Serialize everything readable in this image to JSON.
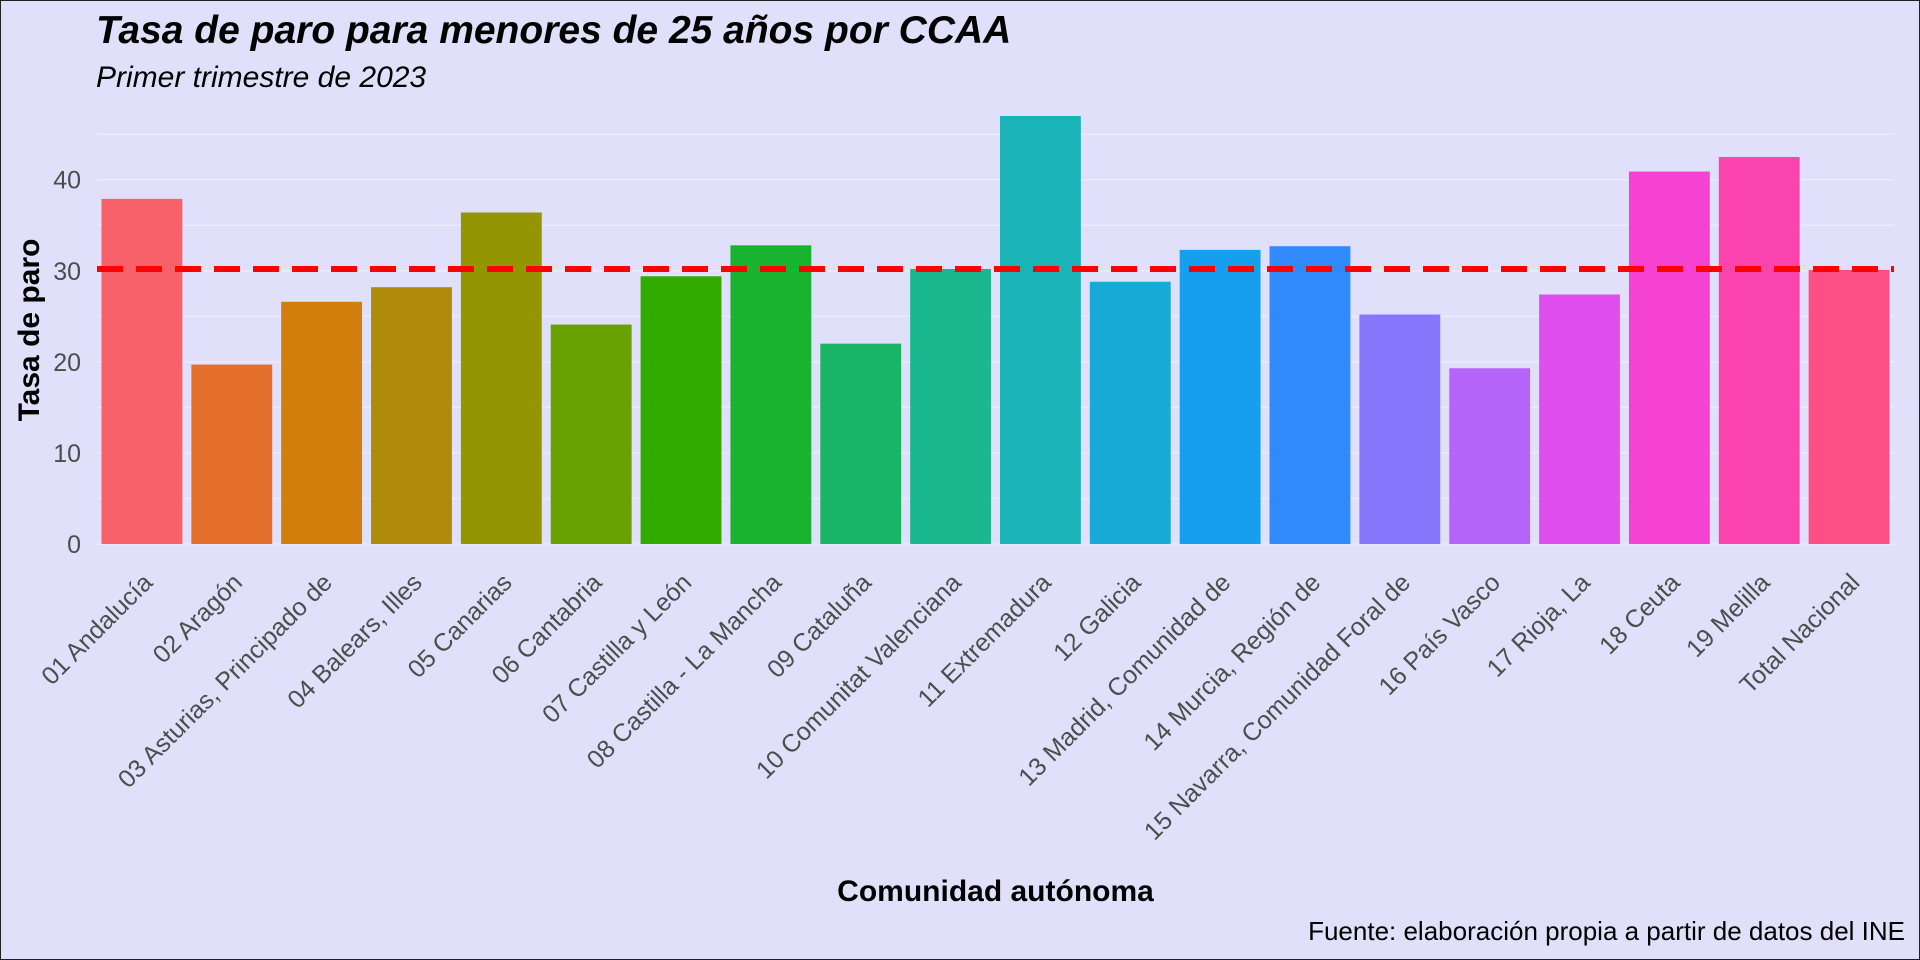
{
  "title": "Tasa de paro para menores de 25 años por CCAA",
  "subtitle": "Primer trimestre de 2023",
  "caption": "Fuente: elaboración propia a partir de datos del INE",
  "colors": {
    "background": "#e1e0fb",
    "gridline": "#ecebfc",
    "reference_line": "#ff0000"
  },
  "chart_data": {
    "type": "bar",
    "xlabel": "Comunidad autónoma",
    "ylabel": "Tasa de paro",
    "ylim": [
      0,
      47
    ],
    "yticks": [
      0,
      10,
      20,
      30,
      40
    ],
    "grid": true,
    "legend": "none",
    "reference_line": {
      "y": 30.2,
      "style": "dashed",
      "color": "#ff0000"
    },
    "categories": [
      "01 Andalucía",
      "02 Aragón",
      "03 Asturias, Principado de",
      "04 Balears, Illes",
      "05 Canarias",
      "06 Cantabria",
      "07 Castilla y León",
      "08 Castilla - La Mancha",
      "09 Cataluña",
      "10 Comunitat Valenciana",
      "11 Extremadura",
      "12 Galicia",
      "13 Madrid, Comunidad de",
      "14 Murcia, Región de",
      "15 Navarra, Comunidad Foral de",
      "16 País Vasco",
      "17 Rioja, La",
      "18 Ceuta",
      "19 Melilla",
      "Total Nacional"
    ],
    "values": [
      37.9,
      19.7,
      26.6,
      28.2,
      36.4,
      24.1,
      29.4,
      32.8,
      22.0,
      30.2,
      47.0,
      28.8,
      32.3,
      32.7,
      25.2,
      19.3,
      27.4,
      40.9,
      42.5,
      30.1
    ],
    "colors": [
      "#f8616a",
      "#e46f2a",
      "#d07e0c",
      "#b08a0a",
      "#949600",
      "#6aa102",
      "#31ab00",
      "#18b32f",
      "#1ab466",
      "#19b88f",
      "#19b3b8",
      "#18aad7",
      "#169fee",
      "#318afc",
      "#8676fb",
      "#b564fa",
      "#e04ef0",
      "#f542d2",
      "#fb44ad",
      "#fc4f85"
    ]
  }
}
